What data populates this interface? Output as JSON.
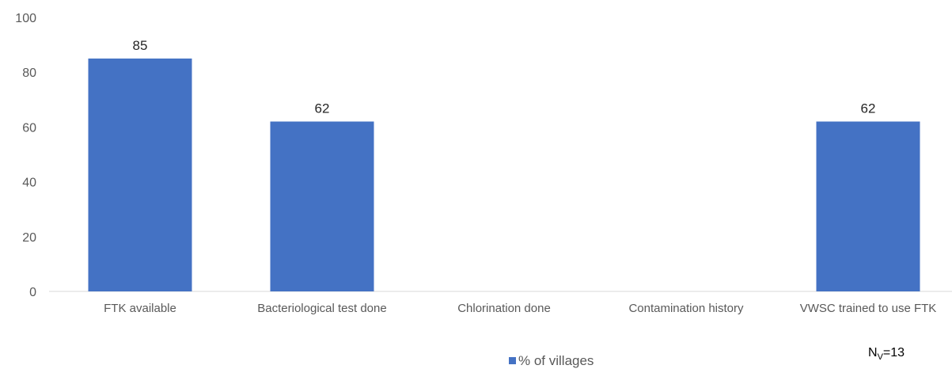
{
  "chart_data": {
    "type": "bar",
    "categories": [
      "FTK available",
      "Bacteriological test done",
      "Chlorination done",
      "Contamination history",
      "VWSC trained to use FTK"
    ],
    "series": [
      {
        "name": "% of villages",
        "values": [
          85,
          62,
          0,
          0,
          62
        ],
        "color": "#4472C4"
      }
    ],
    "data_labels": [
      "85",
      "62",
      "",
      "",
      "62"
    ],
    "ylim": [
      0,
      100
    ],
    "yticks": [
      0,
      20,
      40,
      60,
      80,
      100
    ],
    "grid": false,
    "legend_position": "bottom",
    "title": "",
    "xlabel": "",
    "ylabel": ""
  },
  "annotation": {
    "main": "N",
    "sub": "V",
    "tail": "=13"
  }
}
